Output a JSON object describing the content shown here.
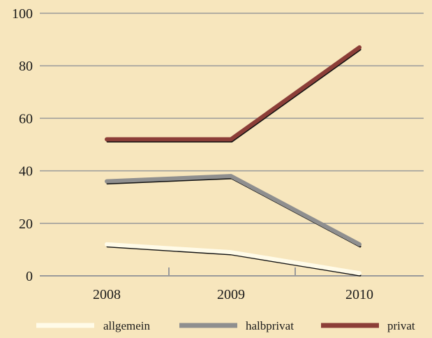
{
  "colors": {
    "background": "#f7e6bd",
    "grid": "#9a9a9a",
    "axis": "#9a9a9a",
    "shadow": "#111111"
  },
  "chart_data": {
    "type": "line",
    "title": "",
    "xlabel": "",
    "ylabel": "",
    "categories": [
      "2008",
      "2009",
      "2010"
    ],
    "ylim": [
      0,
      100
    ],
    "yticks": [
      "0",
      "20",
      "40",
      "60",
      "80",
      "100"
    ],
    "grid": true,
    "legend_position": "bottom",
    "series": [
      {
        "name": "allgemein",
        "values": [
          12,
          9,
          1
        ],
        "color": "#fffbe8"
      },
      {
        "name": "halbprivat",
        "values": [
          36,
          38,
          12
        ],
        "color": "#8f8f8f"
      },
      {
        "name": "privat",
        "values": [
          52,
          52,
          87
        ],
        "color": "#8c3e38"
      }
    ]
  }
}
